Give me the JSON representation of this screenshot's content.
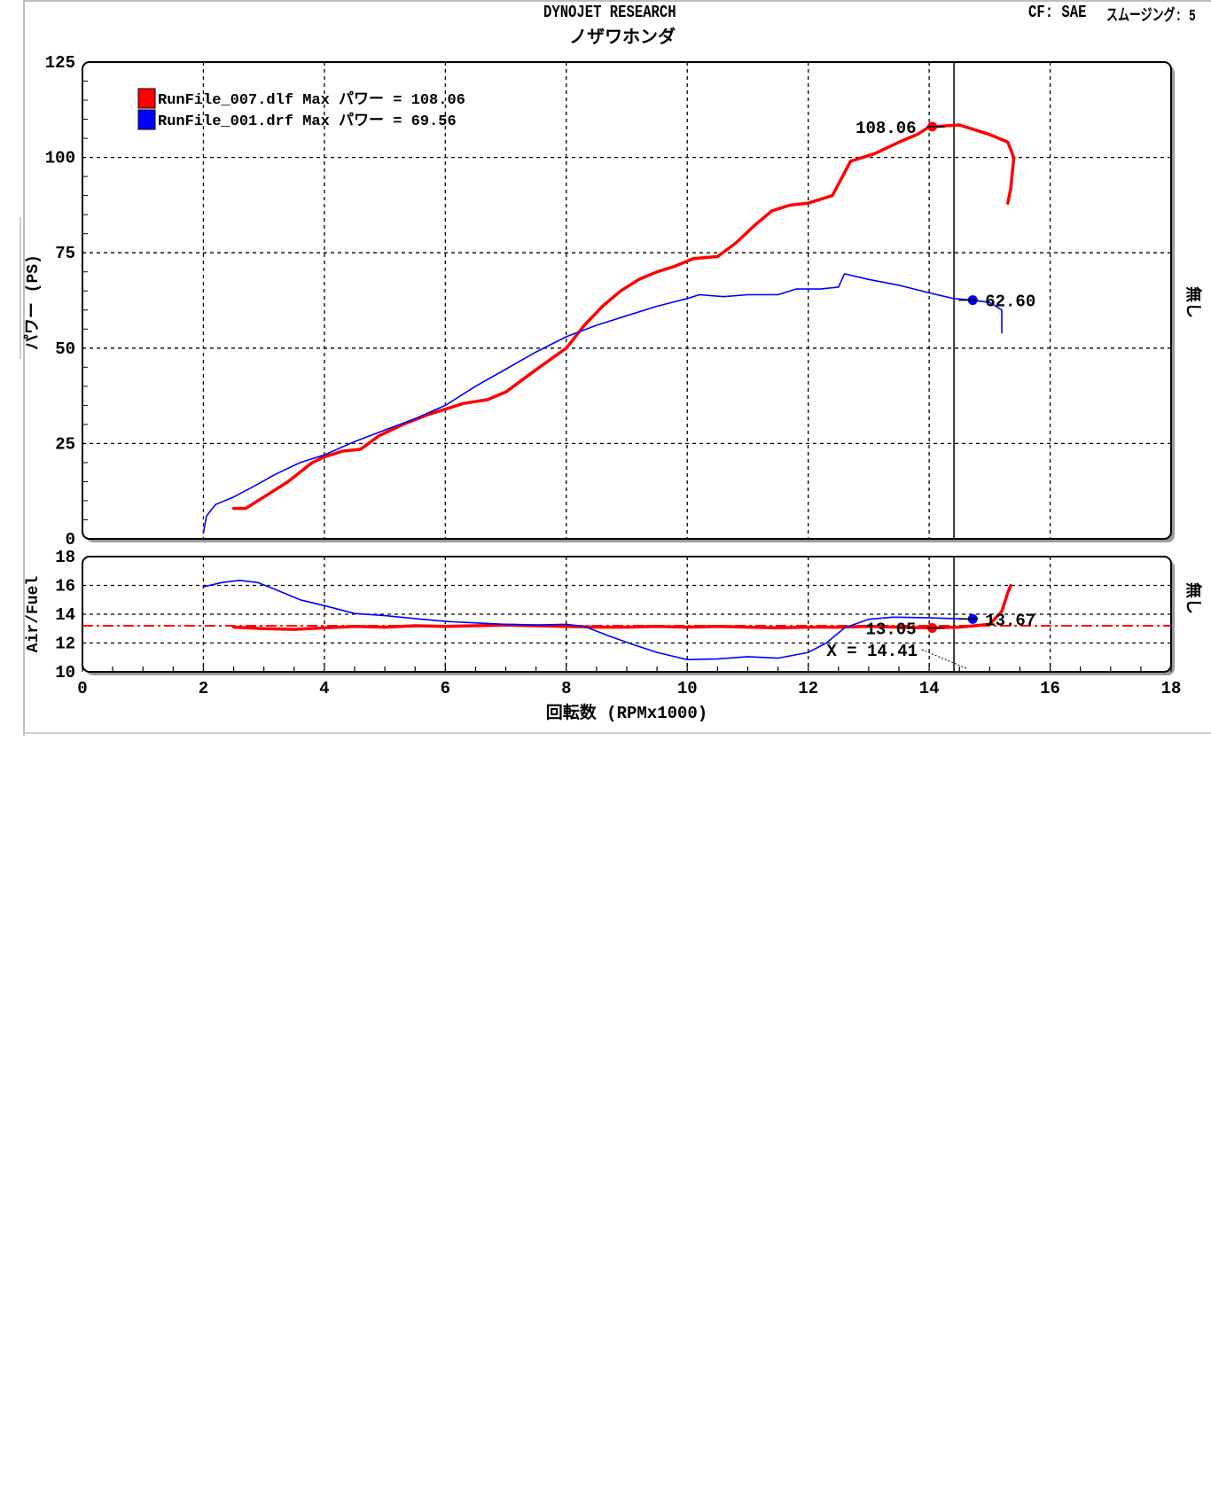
{
  "header": {
    "title": "DYNOJET  RESEARCH",
    "subtitle": "ノザワホンダ",
    "correction": "CF: SAE",
    "smoothing": "スムージング: 5"
  },
  "colors": {
    "red": "#ff0000",
    "blue": "#0000ff",
    "grid": "#000000",
    "panel_border": "#000000"
  },
  "chart_data": [
    {
      "type": "line",
      "ylabel": "パワー (PS)",
      "right_label": "無し",
      "xlim": [
        0,
        18
      ],
      "ylim": [
        0,
        125
      ],
      "x_grid": [
        2,
        4,
        6,
        8,
        10,
        12,
        14,
        16
      ],
      "y_ticks": [
        0,
        25,
        50,
        75,
        100,
        125
      ],
      "legend": {
        "position": "top-left",
        "entries": [
          {
            "text": "RunFile_007.dlf Max パワー = 108.06",
            "color": "#ff0000"
          },
          {
            "text": "RunFile_001.drf Max パワー = 69.56",
            "color": "#0000ff"
          }
        ]
      },
      "cursor_x": 14.41,
      "series": [
        {
          "color": "#ff0000",
          "points": [
            [
              2.5,
              8
            ],
            [
              2.7,
              8
            ],
            [
              3.0,
              11
            ],
            [
              3.4,
              15
            ],
            [
              3.8,
              20
            ],
            [
              4.0,
              21.5
            ],
            [
              4.3,
              23
            ],
            [
              4.6,
              23.5
            ],
            [
              4.9,
              27
            ],
            [
              5.3,
              30
            ],
            [
              5.7,
              32.5
            ],
            [
              6.0,
              34
            ],
            [
              6.3,
              35.5
            ],
            [
              6.7,
              36.5
            ],
            [
              7.0,
              38.5
            ],
            [
              7.3,
              42
            ],
            [
              7.6,
              45.5
            ],
            [
              8.0,
              50
            ],
            [
              8.3,
              56
            ],
            [
              8.6,
              61
            ],
            [
              8.9,
              65
            ],
            [
              9.2,
              68
            ],
            [
              9.5,
              70
            ],
            [
              9.8,
              71.5
            ],
            [
              10.1,
              73.5
            ],
            [
              10.5,
              74
            ],
            [
              10.8,
              77.5
            ],
            [
              11.1,
              82
            ],
            [
              11.4,
              86
            ],
            [
              11.7,
              87.5
            ],
            [
              12.0,
              88
            ],
            [
              12.4,
              90
            ],
            [
              12.7,
              99
            ],
            [
              13.1,
              101
            ],
            [
              13.5,
              104
            ],
            [
              13.8,
              106
            ],
            [
              14.0,
              108
            ],
            [
              14.3,
              108.3
            ],
            [
              14.5,
              108.5
            ],
            [
              14.7,
              107.5
            ],
            [
              15.0,
              106
            ],
            [
              15.3,
              104
            ],
            [
              15.4,
              100
            ],
            [
              15.35,
              92
            ],
            [
              15.3,
              88
            ]
          ],
          "markers": [
            {
              "x": 14.05,
              "y": 108.06,
              "label": "108.06",
              "label_side": "left"
            }
          ]
        },
        {
          "color": "#0000ff",
          "points": [
            [
              2.0,
              1.5
            ],
            [
              2.05,
              6
            ],
            [
              2.2,
              9
            ],
            [
              2.5,
              11
            ],
            [
              2.8,
              13.5
            ],
            [
              3.2,
              17
            ],
            [
              3.6,
              20
            ],
            [
              4.0,
              22
            ],
            [
              4.5,
              25.5
            ],
            [
              5.0,
              28.5
            ],
            [
              5.5,
              31.5
            ],
            [
              6.0,
              35
            ],
            [
              6.5,
              40
            ],
            [
              7.0,
              44.5
            ],
            [
              7.5,
              49
            ],
            [
              8.0,
              53
            ],
            [
              8.5,
              56
            ],
            [
              9.0,
              58.5
            ],
            [
              9.5,
              61
            ],
            [
              10.0,
              63
            ],
            [
              10.2,
              64
            ],
            [
              10.6,
              63.5
            ],
            [
              11.0,
              64
            ],
            [
              11.5,
              64
            ],
            [
              11.8,
              65.5
            ],
            [
              12.2,
              65.5
            ],
            [
              12.5,
              66
            ],
            [
              12.6,
              69.5
            ],
            [
              13.0,
              68
            ],
            [
              13.5,
              66.5
            ],
            [
              14.0,
              64.5
            ],
            [
              14.4,
              63
            ],
            [
              14.7,
              62.6
            ],
            [
              15.0,
              62
            ],
            [
              15.1,
              61
            ],
            [
              15.2,
              60
            ],
            [
              15.2,
              54
            ]
          ],
          "markers": [
            {
              "x": 14.72,
              "y": 62.6,
              "label": "62.60",
              "label_side": "right"
            }
          ]
        }
      ]
    },
    {
      "type": "line",
      "ylabel": "Air/Fuel",
      "xlabel": "回転数 (RPMx1000)",
      "right_label": "無し",
      "xlim": [
        0,
        18
      ],
      "ylim": [
        10,
        18
      ],
      "x_ticks": [
        0,
        2,
        4,
        6,
        8,
        10,
        12,
        14,
        16,
        18
      ],
      "y_ticks": [
        10,
        12,
        14,
        16,
        18
      ],
      "reference_line": {
        "y": 13.2,
        "color": "#ff0000",
        "style": "dash-dot"
      },
      "cursor_x": 14.41,
      "cursor_readout": "X = 14.41",
      "series": [
        {
          "color": "#ff0000",
          "points": [
            [
              2.5,
              13.1
            ],
            [
              3.0,
              13.0
            ],
            [
              3.5,
              12.95
            ],
            [
              4.0,
              13.05
            ],
            [
              4.5,
              13.15
            ],
            [
              5.0,
              13.1
            ],
            [
              5.5,
              13.2
            ],
            [
              6.0,
              13.15
            ],
            [
              6.5,
              13.2
            ],
            [
              7.0,
              13.25
            ],
            [
              7.5,
              13.2
            ],
            [
              8.0,
              13.15
            ],
            [
              8.5,
              13.1
            ],
            [
              9.0,
              13.1
            ],
            [
              9.5,
              13.15
            ],
            [
              10.0,
              13.1
            ],
            [
              10.5,
              13.15
            ],
            [
              11.0,
              13.1
            ],
            [
              11.5,
              13.05
            ],
            [
              12.0,
              13.1
            ],
            [
              12.5,
              13.1
            ],
            [
              13.0,
              13.15
            ],
            [
              13.5,
              13.1
            ],
            [
              14.0,
              13.05
            ],
            [
              14.5,
              13.1
            ],
            [
              15.0,
              13.3
            ],
            [
              15.2,
              14.2
            ],
            [
              15.3,
              15.5
            ],
            [
              15.35,
              16.0
            ]
          ],
          "markers": [
            {
              "x": 14.05,
              "y": 13.05,
              "label": "13.05",
              "label_side": "left"
            }
          ]
        },
        {
          "color": "#0000ff",
          "points": [
            [
              2.0,
              15.9
            ],
            [
              2.3,
              16.2
            ],
            [
              2.6,
              16.35
            ],
            [
              2.9,
              16.2
            ],
            [
              3.2,
              15.7
            ],
            [
              3.6,
              15.0
            ],
            [
              4.0,
              14.6
            ],
            [
              4.5,
              14.05
            ],
            [
              5.0,
              13.9
            ],
            [
              5.5,
              13.7
            ],
            [
              6.0,
              13.5
            ],
            [
              6.5,
              13.4
            ],
            [
              7.0,
              13.3
            ],
            [
              7.5,
              13.25
            ],
            [
              8.0,
              13.3
            ],
            [
              8.3,
              13.15
            ],
            [
              8.7,
              12.5
            ],
            [
              9.1,
              11.9
            ],
            [
              9.5,
              11.35
            ],
            [
              10.0,
              10.85
            ],
            [
              10.5,
              10.9
            ],
            [
              11.0,
              11.05
            ],
            [
              11.5,
              10.95
            ],
            [
              12.0,
              11.35
            ],
            [
              12.3,
              12.0
            ],
            [
              12.6,
              13.05
            ],
            [
              13.0,
              13.65
            ],
            [
              13.4,
              13.8
            ],
            [
              14.0,
              13.75
            ],
            [
              14.4,
              13.7
            ],
            [
              14.7,
              13.67
            ]
          ],
          "markers": [
            {
              "x": 14.72,
              "y": 13.67,
              "label": "13.67",
              "label_side": "right"
            }
          ]
        }
      ]
    }
  ]
}
